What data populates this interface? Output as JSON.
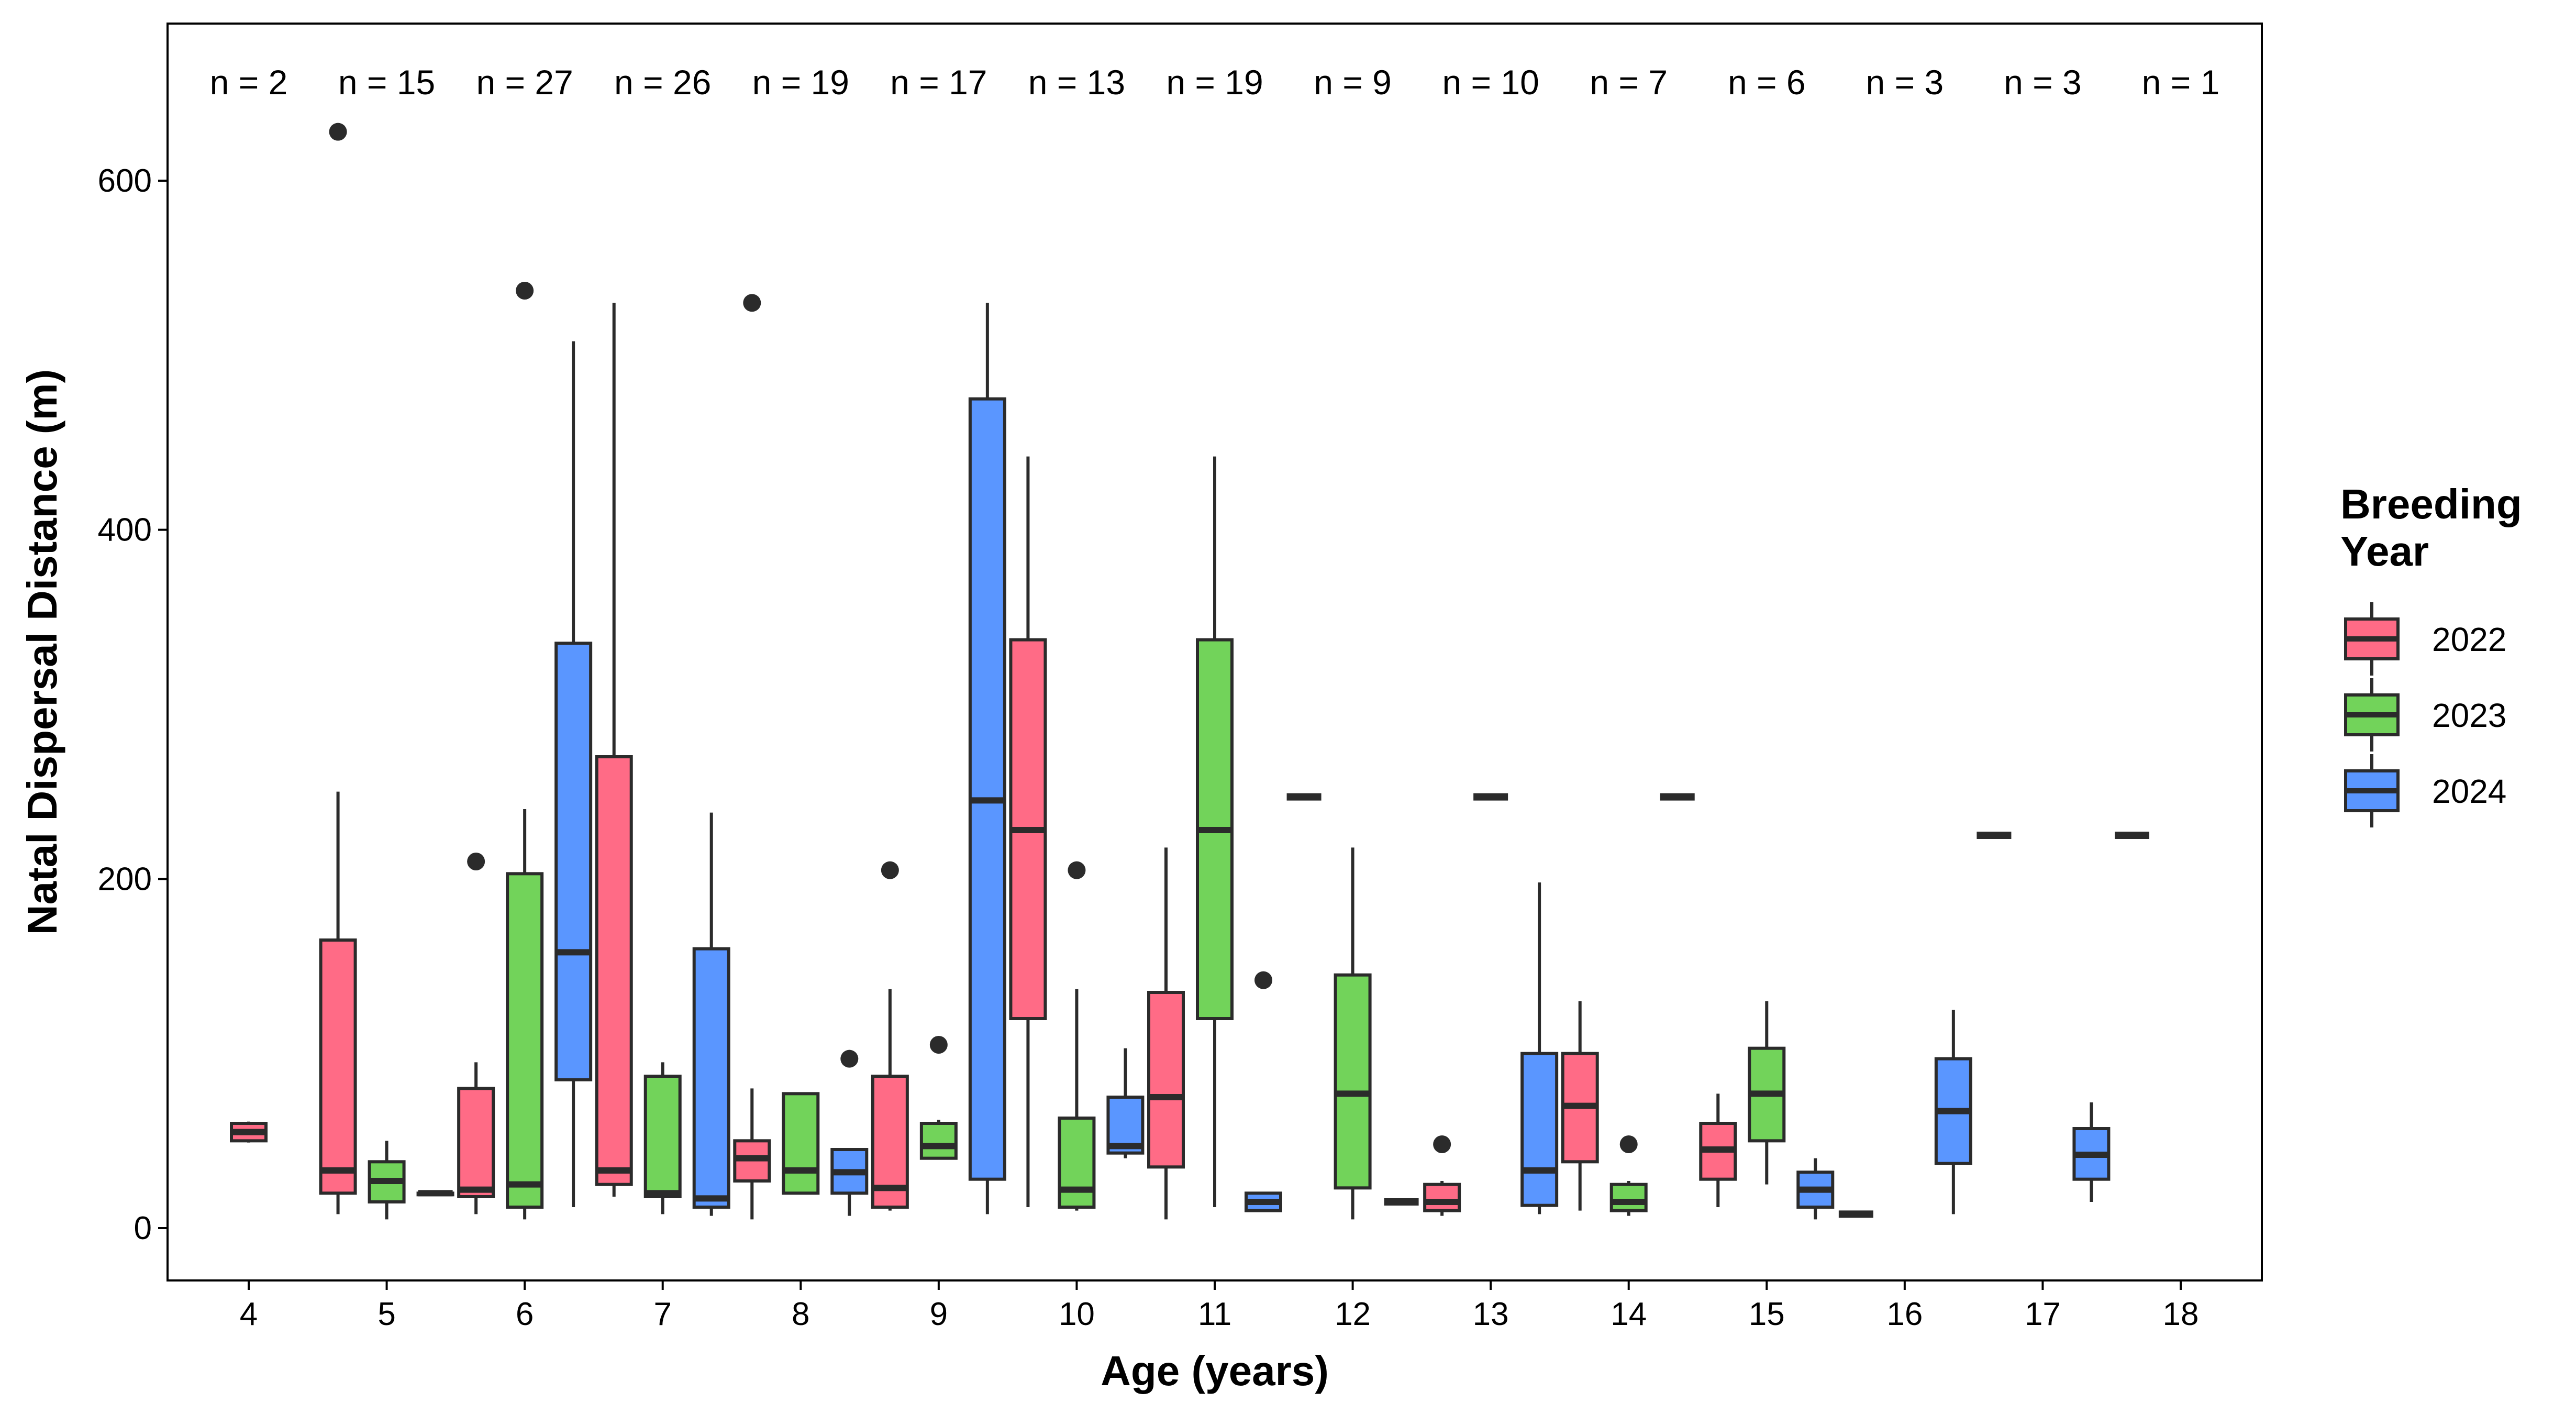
{
  "chart_data": {
    "type": "boxplot",
    "xlabel": "Age (years)",
    "ylabel": "Natal Dispersal Distance (m)",
    "ylim": [
      -30,
      690
    ],
    "yticks": [
      0,
      200,
      400,
      600
    ],
    "categories": [
      "4",
      "5",
      "6",
      "7",
      "8",
      "9",
      "10",
      "11",
      "12",
      "13",
      "14",
      "15",
      "16",
      "17",
      "18"
    ],
    "sample_sizes": [
      "n = 2",
      "n = 15",
      "n = 27",
      "n = 26",
      "n = 19",
      "n = 17",
      "n = 13",
      "n = 19",
      "n = 9",
      "n = 10",
      "n = 7",
      "n = 6",
      "n = 3",
      "n = 3",
      "n = 1"
    ],
    "legend": {
      "title": [
        "Breeding",
        "Year"
      ],
      "position": "right"
    },
    "grid": false,
    "series": [
      {
        "name": "2022",
        "color": "#F8766D",
        "fill": "#FF6B86",
        "boxes": [
          {
            "age": "4",
            "single": true,
            "lower_whisker": 49,
            "q1": 50,
            "median": 55,
            "q3": 60,
            "upper_whisker": 61,
            "outliers": []
          },
          {
            "age": "5",
            "lower_whisker": 8,
            "q1": 20,
            "median": 33,
            "q3": 165,
            "upper_whisker": 250,
            "outliers": [
              628
            ]
          },
          {
            "age": "6",
            "lower_whisker": 8,
            "q1": 18,
            "median": 22,
            "q3": 80,
            "upper_whisker": 95,
            "outliers": [
              210
            ]
          },
          {
            "age": "7",
            "lower_whisker": 18,
            "q1": 25,
            "median": 33,
            "q3": 270,
            "upper_whisker": 530,
            "outliers": []
          },
          {
            "age": "8",
            "lower_whisker": 5,
            "q1": 27,
            "median": 40,
            "q3": 50,
            "upper_whisker": 80,
            "outliers": [
              530
            ]
          },
          {
            "age": "9",
            "lower_whisker": 10,
            "q1": 12,
            "median": 23,
            "q3": 87,
            "upper_whisker": 137,
            "outliers": [
              205
            ]
          },
          {
            "age": "10",
            "lower_whisker": 12,
            "q1": 120,
            "median": 228,
            "q3": 337,
            "upper_whisker": 442,
            "outliers": []
          },
          {
            "age": "11",
            "lower_whisker": 5,
            "q1": 35,
            "median": 75,
            "q3": 135,
            "upper_whisker": 218,
            "outliers": []
          },
          {
            "age": "13",
            "lower_whisker": 7,
            "q1": 10,
            "median": 15,
            "q3": 25,
            "upper_whisker": 27,
            "outliers": [
              48
            ]
          },
          {
            "age": "14",
            "lower_whisker": 10,
            "q1": 38,
            "median": 70,
            "q3": 100,
            "upper_whisker": 130,
            "outliers": []
          },
          {
            "age": "15",
            "lower_whisker": 12,
            "q1": 28,
            "median": 45,
            "q3": 60,
            "upper_whisker": 77,
            "outliers": []
          }
        ]
      },
      {
        "name": "2023",
        "color": "#7CAE00",
        "fill": "#72D35A",
        "boxes": [
          {
            "age": "5",
            "lower_whisker": 5,
            "q1": 15,
            "median": 27,
            "q3": 38,
            "upper_whisker": 50,
            "outliers": []
          },
          {
            "age": "6",
            "lower_whisker": 5,
            "q1": 12,
            "median": 25,
            "q3": 203,
            "upper_whisker": 240,
            "outliers": [
              537
            ]
          },
          {
            "age": "7",
            "lower_whisker": 8,
            "q1": 18,
            "median": 20,
            "q3": 87,
            "upper_whisker": 95,
            "outliers": []
          },
          {
            "age": "8",
            "lower_whisker": 20,
            "q1": 20,
            "median": 33,
            "q3": 77,
            "upper_whisker": 77,
            "outliers": []
          },
          {
            "age": "9",
            "lower_whisker": 40,
            "q1": 40,
            "median": 47,
            "q3": 60,
            "upper_whisker": 62,
            "outliers": [
              105
            ]
          },
          {
            "age": "10",
            "lower_whisker": 10,
            "q1": 12,
            "median": 22,
            "q3": 63,
            "upper_whisker": 137,
            "outliers": [
              205
            ]
          },
          {
            "age": "11",
            "lower_whisker": 12,
            "q1": 120,
            "median": 228,
            "q3": 337,
            "upper_whisker": 442,
            "outliers": []
          },
          {
            "age": "12",
            "lower_whisker": 5,
            "q1": 23,
            "median": 77,
            "q3": 145,
            "upper_whisker": 218,
            "outliers": []
          },
          {
            "age": "14",
            "lower_whisker": 7,
            "q1": 10,
            "median": 15,
            "q3": 25,
            "upper_whisker": 27,
            "outliers": [
              48
            ]
          },
          {
            "age": "15",
            "lower_whisker": 25,
            "q1": 50,
            "median": 77,
            "q3": 103,
            "upper_whisker": 130,
            "outliers": []
          }
        ]
      },
      {
        "name": "2024",
        "color": "#619CFF",
        "fill": "#5A96FF",
        "boxes": [
          {
            "age": "5",
            "single": true,
            "lower_whisker": 20,
            "q1": 20,
            "median": 20,
            "q3": 20,
            "upper_whisker": 20,
            "outliers": []
          },
          {
            "age": "6",
            "lower_whisker": 12,
            "q1": 85,
            "median": 158,
            "q3": 335,
            "upper_whisker": 508,
            "outliers": []
          },
          {
            "age": "7",
            "lower_whisker": 7,
            "q1": 12,
            "median": 17,
            "q3": 160,
            "upper_whisker": 238,
            "outliers": []
          },
          {
            "age": "8",
            "lower_whisker": 7,
            "q1": 20,
            "median": 32,
            "q3": 45,
            "upper_whisker": 45,
            "outliers": [
              97
            ]
          },
          {
            "age": "9",
            "lower_whisker": 8,
            "q1": 28,
            "median": 245,
            "q3": 475,
            "upper_whisker": 530,
            "outliers": []
          },
          {
            "age": "10",
            "lower_whisker": 40,
            "q1": 43,
            "median": 47,
            "q3": 75,
            "upper_whisker": 103,
            "outliers": []
          },
          {
            "age": "11",
            "lower_whisker": 10,
            "q1": 10,
            "median": 15,
            "q3": 20,
            "upper_whisker": 20,
            "outliers": [
              142
            ]
          },
          {
            "age": "13",
            "lower_whisker": 8,
            "q1": 13,
            "median": 33,
            "q3": 100,
            "upper_whisker": 198,
            "outliers": []
          },
          {
            "age": "15",
            "lower_whisker": 5,
            "q1": 12,
            "median": 22,
            "q3": 32,
            "upper_whisker": 40,
            "outliers": []
          },
          {
            "age": "16",
            "lower_whisker": 8,
            "q1": 37,
            "median": 67,
            "q3": 97,
            "upper_whisker": 125,
            "outliers": []
          },
          {
            "age": "17",
            "lower_whisker": 15,
            "q1": 28,
            "median": 42,
            "q3": 57,
            "upper_whisker": 72,
            "outliers": []
          }
        ]
      }
    ],
    "single_value_medians": [
      {
        "age": "12",
        "group": "2022",
        "value": 247
      },
      {
        "age": "12",
        "group": "2024",
        "value": 15
      },
      {
        "age": "13",
        "group": "2023",
        "value": 247
      },
      {
        "age": "14",
        "group": "2024",
        "value": 247
      },
      {
        "age": "16",
        "group": "2022",
        "value": 8
      },
      {
        "age": "17",
        "group": "2022",
        "value": 225
      },
      {
        "age": "18",
        "group": "2022",
        "value": 225
      }
    ]
  }
}
